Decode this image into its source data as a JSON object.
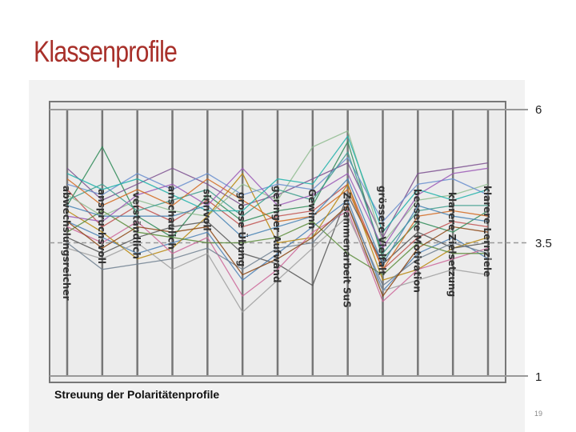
{
  "slide": {
    "title": "Klassenprofile",
    "caption": "Streuung der Polaritätenprofile",
    "page_number": "19"
  },
  "colors": {
    "title": "#a8302a",
    "axis": "#777777",
    "guide": "#999999"
  },
  "chart_data": {
    "type": "line",
    "title": "",
    "xlabel": "",
    "ylabel": "",
    "ylim": [
      1,
      6
    ],
    "y_ticks": [
      "6",
      "3.5",
      "1"
    ],
    "grid": false,
    "categories": [
      "abwechslungsreicher",
      "anspruchsvoll",
      "verständlich",
      "anschaulich",
      "sinnvoll",
      "grosse Übung",
      "geringer Aufwand",
      "Gewinn",
      "Zusammenarbeit SuS",
      "grössere Vielfalt",
      "bessere Motivation",
      "klarere Zielsetzung",
      "klarere Lernziele"
    ],
    "series": [
      {
        "color": "#c0504d",
        "values": [
          4.5,
          3.8,
          4.2,
          3.9,
          4.3,
          3.8,
          4.0,
          4.1,
          4.6,
          3.0,
          3.6,
          3.9,
          3.8
        ]
      },
      {
        "color": "#2e8b57",
        "values": [
          4.2,
          5.3,
          4.0,
          3.6,
          4.4,
          3.9,
          4.1,
          4.2,
          5.4,
          3.2,
          3.9,
          3.7,
          4.1
        ]
      },
      {
        "color": "#7b4f8f",
        "values": [
          4.9,
          4.3,
          4.6,
          4.9,
          4.6,
          4.2,
          4.4,
          4.7,
          5.0,
          3.6,
          4.8,
          4.9,
          5.0
        ]
      },
      {
        "color": "#4a7fb5",
        "values": [
          3.9,
          3.6,
          3.3,
          3.5,
          3.7,
          2.8,
          3.3,
          3.8,
          4.3,
          2.6,
          3.3,
          3.6,
          3.2
        ]
      },
      {
        "color": "#8fbc8f",
        "values": [
          4.4,
          4.0,
          4.3,
          4.1,
          4.0,
          4.6,
          4.3,
          5.3,
          5.6,
          3.5,
          4.3,
          4.4,
          4.6
        ]
      },
      {
        "color": "#b8860b",
        "values": [
          4.1,
          3.7,
          3.2,
          3.4,
          4.0,
          4.8,
          3.5,
          3.6,
          4.6,
          2.8,
          3.0,
          3.4,
          3.6
        ]
      },
      {
        "color": "#555555",
        "values": [
          3.6,
          3.3,
          3.6,
          3.8,
          3.9,
          3.3,
          3.1,
          2.7,
          4.4,
          3.1,
          3.7,
          3.4,
          3.5
        ]
      },
      {
        "color": "#6a8fcf",
        "values": [
          4.6,
          4.4,
          4.8,
          4.5,
          4.8,
          4.4,
          4.6,
          4.5,
          5.1,
          3.9,
          4.6,
          4.7,
          4.4
        ]
      },
      {
        "color": "#cc6699",
        "values": [
          3.8,
          3.5,
          3.9,
          3.3,
          3.6,
          2.5,
          3.0,
          3.7,
          4.1,
          2.4,
          3.0,
          3.2,
          3.4
        ]
      },
      {
        "color": "#3c9c8c",
        "values": [
          4.3,
          4.6,
          4.1,
          4.3,
          4.5,
          4.0,
          4.5,
          4.3,
          5.2,
          3.3,
          4.1,
          4.2,
          4.2
        ]
      },
      {
        "color": "#a0a0a0",
        "values": [
          3.4,
          3.2,
          3.5,
          3.0,
          3.3,
          2.2,
          2.8,
          3.4,
          4.0,
          2.6,
          2.8,
          3.0,
          2.9
        ]
      },
      {
        "color": "#9b59b6",
        "values": [
          4.0,
          3.9,
          4.4,
          4.6,
          4.2,
          4.9,
          4.2,
          4.4,
          4.8,
          3.4,
          4.4,
          4.8,
          4.9
        ]
      },
      {
        "color": "#5b8c3a",
        "values": [
          3.7,
          4.1,
          3.7,
          3.6,
          3.5,
          3.5,
          3.6,
          3.9,
          3.3,
          2.9,
          3.5,
          3.3,
          3.3
        ]
      },
      {
        "color": "#d2691e",
        "values": [
          4.7,
          4.2,
          4.5,
          4.2,
          4.7,
          4.3,
          3.9,
          4.0,
          4.5,
          3.0,
          4.0,
          4.1,
          4.0
        ]
      },
      {
        "color": "#708090",
        "values": [
          3.5,
          3.0,
          3.1,
          3.2,
          3.4,
          3.0,
          3.4,
          3.5,
          4.2,
          2.7,
          3.2,
          3.5,
          3.3
        ]
      },
      {
        "color": "#20b2aa",
        "values": [
          4.8,
          4.5,
          4.7,
          4.4,
          4.1,
          4.1,
          4.7,
          4.6,
          5.5,
          3.7,
          4.5,
          4.3,
          4.5
        ]
      },
      {
        "color": "#8b4513",
        "values": [
          3.9,
          3.4,
          3.8,
          3.7,
          3.8,
          2.9,
          3.2,
          3.6,
          4.2,
          2.5,
          3.4,
          3.8,
          3.7
        ]
      },
      {
        "color": "#4682b4",
        "values": [
          4.2,
          4.0,
          4.0,
          4.0,
          4.2,
          3.6,
          3.8,
          4.0,
          4.7,
          3.1,
          4.2,
          4.0,
          3.9
        ]
      }
    ]
  }
}
